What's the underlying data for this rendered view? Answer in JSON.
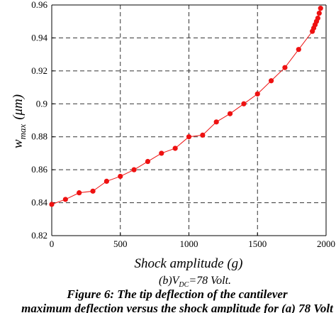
{
  "chart_data": {
    "type": "line",
    "xlabel": "Shock amplitude (g)",
    "ylabel_main": "w",
    "ylabel_sub": "max",
    "ylabel_unit": "(μm)",
    "xlim": [
      0,
      2000
    ],
    "ylim": [
      0.82,
      0.96
    ],
    "xticks": [
      0,
      500,
      1000,
      1500,
      2000
    ],
    "yticks": [
      0.82,
      0.84,
      0.86,
      0.88,
      0.9,
      0.92,
      0.94,
      0.96
    ],
    "xtick_labels": [
      "0",
      "500",
      "1000",
      "1500",
      "2000"
    ],
    "ytick_labels": [
      "0.82",
      "0.84",
      "0.86",
      "0.88",
      "0.9",
      "0.92",
      "0.94",
      "0.96"
    ],
    "grid": "dashed",
    "series": [
      {
        "color": "#ee1111",
        "marker": "circle",
        "x": [
          0,
          100,
          200,
          300,
          400,
          500,
          600,
          700,
          800,
          900,
          1000,
          1100,
          1200,
          1300,
          1400,
          1500,
          1600,
          1700,
          1800,
          1900,
          1910,
          1920,
          1930,
          1940,
          1950,
          1960
        ],
        "y": [
          0.839,
          0.842,
          0.846,
          0.847,
          0.853,
          0.856,
          0.86,
          0.865,
          0.87,
          0.873,
          0.88,
          0.881,
          0.889,
          0.894,
          0.9,
          0.906,
          0.914,
          0.922,
          0.933,
          0.944,
          0.946,
          0.948,
          0.95,
          0.952,
          0.955,
          0.958
        ]
      }
    ]
  },
  "subcaption": {
    "prefix": "(b)V",
    "subscript": "DC",
    "suffix": "=78 Volt."
  },
  "caption": {
    "line1": "Figure 6: The tip deflection of the cantilever",
    "line2": "maximum deflection versus the shock amplitude for (a) 78 Volt"
  }
}
